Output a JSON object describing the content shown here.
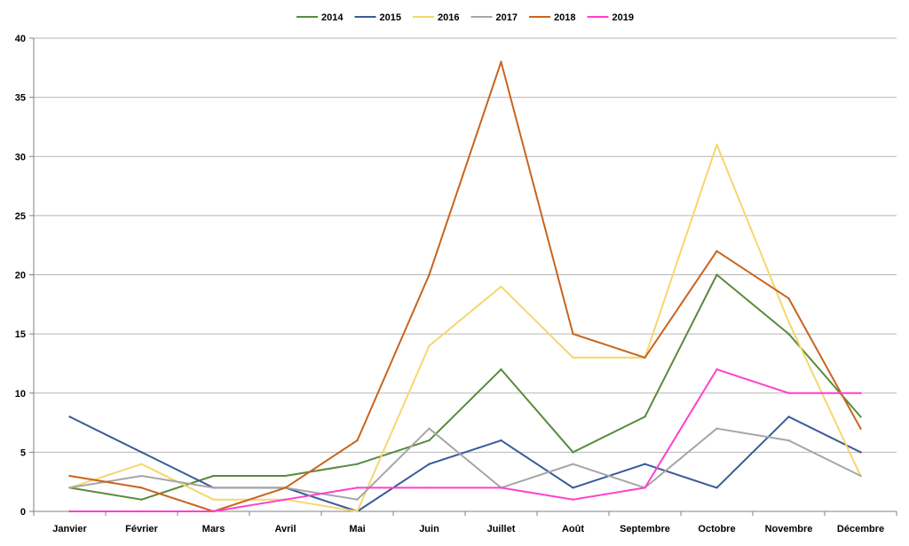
{
  "chart_data": {
    "type": "line",
    "title": "",
    "xlabel": "",
    "ylabel": "",
    "ylim": [
      0,
      40
    ],
    "yticks": [
      0,
      5,
      10,
      15,
      20,
      25,
      30,
      35,
      40
    ],
    "grid": true,
    "legend_position": "top-center",
    "categories": [
      "Janvier",
      "Février",
      "Mars",
      "Avril",
      "Mai",
      "Juin",
      "Juillet",
      "Août",
      "Septembre",
      "Octobre",
      "Novembre",
      "Décembre"
    ],
    "series": [
      {
        "name": "2014",
        "color": "#5a8a3c",
        "values": [
          2,
          1,
          3,
          3,
          4,
          6,
          12,
          5,
          8,
          20,
          15,
          8
        ]
      },
      {
        "name": "2015",
        "color": "#3a5a9a",
        "values": [
          8,
          5,
          2,
          2,
          0,
          4,
          6,
          2,
          4,
          2,
          8,
          5
        ]
      },
      {
        "name": "2016",
        "color": "#f5d76e",
        "values": [
          2,
          4,
          1,
          1,
          0,
          14,
          19,
          13,
          13,
          31,
          16,
          3
        ]
      },
      {
        "name": "2017",
        "color": "#a6a6a6",
        "values": [
          2,
          3,
          2,
          2,
          1,
          7,
          2,
          4,
          2,
          7,
          6,
          3
        ]
      },
      {
        "name": "2018",
        "color": "#c8641e",
        "values": [
          3,
          2,
          0,
          2,
          6,
          20,
          38,
          15,
          13,
          22,
          18,
          7
        ]
      },
      {
        "name": "2019",
        "color": "#ff3fcf",
        "values": [
          0,
          0,
          0,
          1,
          2,
          2,
          2,
          1,
          2,
          12,
          10,
          10
        ]
      }
    ]
  }
}
